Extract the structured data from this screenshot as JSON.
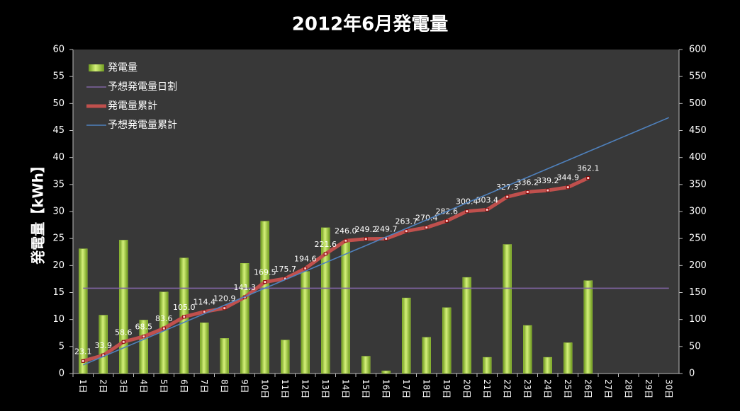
{
  "chart_data": {
    "type": "bar",
    "title": "2012年6月発電量",
    "y_label": "発電量【kWh】",
    "categories": [
      "1日",
      "2日",
      "3日",
      "4日",
      "5日",
      "6日",
      "7日",
      "8日",
      "9日",
      "10日",
      "11日",
      "12日",
      "13日",
      "14日",
      "15日",
      "16日",
      "17日",
      "18日",
      "19日",
      "20日",
      "21日",
      "22日",
      "23日",
      "24日",
      "25日",
      "26日",
      "27日",
      "28日",
      "29日",
      "30日"
    ],
    "ylim": [
      0,
      60
    ],
    "yticks": [
      0,
      5,
      10,
      15,
      20,
      25,
      30,
      35,
      40,
      45,
      50,
      55,
      60
    ],
    "y2lim": [
      0,
      600
    ],
    "y2ticks": [
      0,
      50,
      100,
      150,
      200,
      250,
      300,
      350,
      400,
      450,
      500,
      550,
      600
    ],
    "legend": "top-left",
    "series": [
      {
        "name": "発電量",
        "type": "bar",
        "color": "#9bc53d",
        "values": [
          23.1,
          10.8,
          24.7,
          9.9,
          15.1,
          21.4,
          9.4,
          6.5,
          20.4,
          28.2,
          6.2,
          18.9,
          27.0,
          24.4,
          3.2,
          0.5,
          14.0,
          6.7,
          12.2,
          17.8,
          3.0,
          23.9,
          8.9,
          3.0,
          5.7,
          17.2,
          null,
          null,
          null,
          null
        ]
      },
      {
        "name": "予想発電量日割",
        "type": "line",
        "color": "#8064a2",
        "values": [
          15.8,
          15.8,
          15.8,
          15.8,
          15.8,
          15.8,
          15.8,
          15.8,
          15.8,
          15.8,
          15.8,
          15.8,
          15.8,
          15.8,
          15.8,
          15.8,
          15.8,
          15.8,
          15.8,
          15.8,
          15.8,
          15.8,
          15.8,
          15.8,
          15.8,
          15.8,
          15.8,
          15.8,
          15.8,
          15.8
        ]
      },
      {
        "name": "発電量累計",
        "type": "line",
        "axis": "y2",
        "color": "#c0504d",
        "markers": true,
        "values": [
          23.1,
          33.9,
          58.6,
          68.5,
          83.6,
          105.0,
          114.4,
          120.9,
          141.3,
          169.5,
          175.7,
          194.6,
          221.6,
          246.0,
          249.2,
          249.7,
          263.7,
          270.4,
          282.6,
          300.4,
          303.4,
          327.3,
          336.2,
          339.2,
          344.9,
          362.1,
          null,
          null,
          null,
          null
        ],
        "value_labels": [
          "23.1",
          "33.9",
          "58.6",
          "68.5",
          "83.6",
          "105.0",
          "114.4",
          "120.9",
          "141.3",
          "169.5",
          "175.7",
          "194.6",
          "221.6",
          "246.0",
          "249.2",
          "249.7",
          "263.7",
          "270.4",
          "282.6",
          "300.4",
          "303.4",
          "327.3",
          "336.2",
          "339.2",
          "344.9",
          "362.1",
          null,
          null,
          null,
          null
        ]
      },
      {
        "name": "予想発電量累計",
        "type": "line",
        "axis": "y2",
        "color": "#4f81bd",
        "values": [
          15.8,
          31.6,
          47.4,
          63.2,
          79,
          94.8,
          110.6,
          126.4,
          142.2,
          158,
          173.8,
          189.6,
          205.4,
          221.2,
          237,
          252.8,
          268.6,
          284.4,
          300.2,
          316,
          331.8,
          347.6,
          363.4,
          379.2,
          395,
          410.8,
          426.6,
          442.4,
          458.2,
          474
        ]
      }
    ]
  }
}
